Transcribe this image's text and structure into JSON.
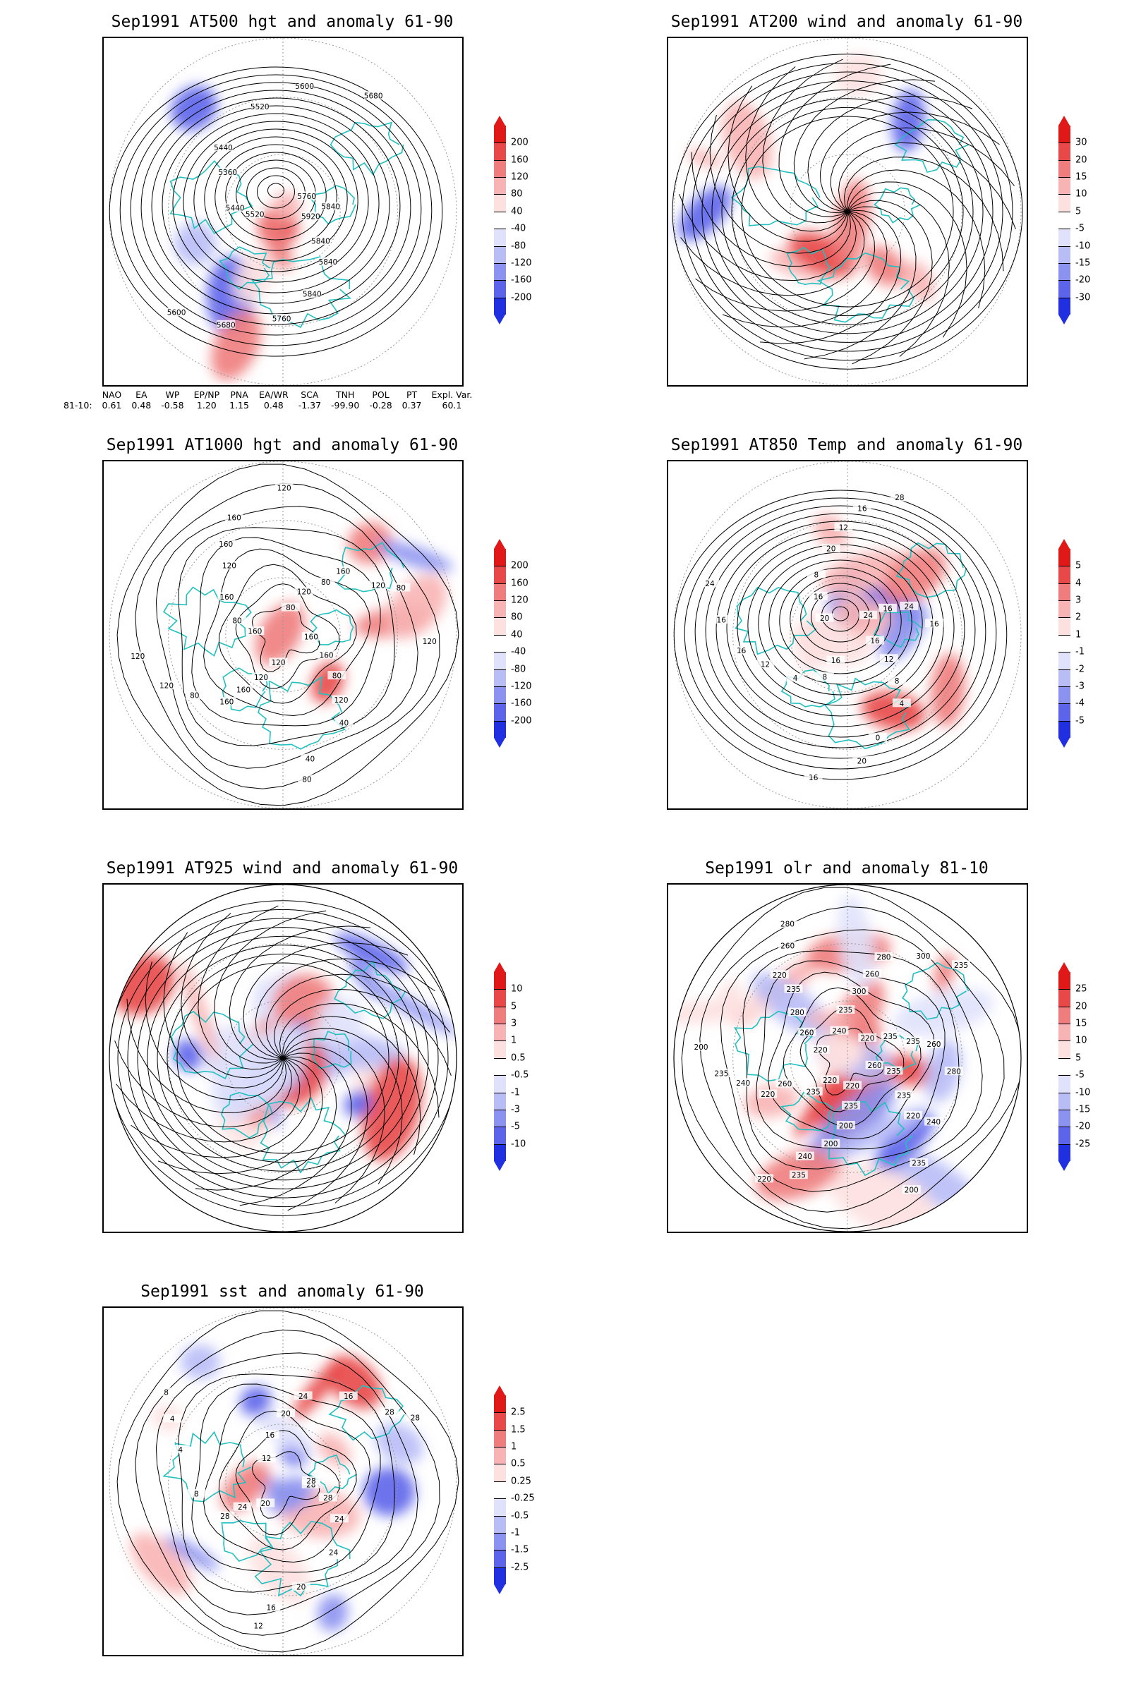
{
  "panels": [
    {
      "id": "p500",
      "title": "Sep1991 AT500 hgt and anomaly 61-90",
      "contour_labels": [
        "5920",
        "5840",
        "5840",
        "5840",
        "5760",
        "5680",
        "5600",
        "5520",
        "5440",
        "5360",
        "5440",
        "5520",
        "5600",
        "5680",
        "5760",
        "5840"
      ],
      "colorbar": {
        "levels": [
          "200",
          "160",
          "120",
          "80",
          "40",
          "-40",
          "-80",
          "-120",
          "-160",
          "-200"
        ]
      }
    },
    {
      "id": "p200",
      "title": "Sep1991 AT200 wind and anomaly 61-90",
      "contour_labels": [],
      "colorbar": {
        "levels": [
          "30",
          "20",
          "15",
          "10",
          "5",
          "-5",
          "-10",
          "-15",
          "-20",
          "-30"
        ]
      }
    },
    {
      "id": "p1000",
      "title": "Sep1991 AT1000 hgt and anomaly 61-90",
      "contour_labels": [
        "160",
        "160",
        "80",
        "120",
        "40",
        "40",
        "80",
        "120",
        "120",
        "160",
        "160",
        "80",
        "120",
        "120",
        "160",
        "80",
        "160",
        "120",
        "160",
        "160",
        "120",
        "80",
        "120",
        "80",
        "160",
        "120",
        "80",
        "120"
      ],
      "colorbar": {
        "levels": [
          "200",
          "160",
          "120",
          "80",
          "40",
          "-40",
          "-80",
          "-120",
          "-160",
          "-200"
        ]
      }
    },
    {
      "id": "p850",
      "title": "Sep1991 AT850 Temp and anomaly 61-90",
      "contour_labels": [
        "16",
        "12",
        "8",
        "4",
        "0",
        "20",
        "16",
        "16",
        "8",
        "4",
        "12",
        "16",
        "16",
        "24",
        "20",
        "16",
        "8",
        "20",
        "12",
        "16",
        "28",
        "24",
        "16",
        "24",
        "16"
      ],
      "colorbar": {
        "levels": [
          "5",
          "4",
          "3",
          "2",
          "1",
          "-1",
          "-2",
          "-3",
          "-4",
          "-5"
        ]
      }
    },
    {
      "id": "p925",
      "title": "Sep1991 AT925 wind and anomaly 61-90",
      "contour_labels": [],
      "colorbar": {
        "levels": [
          "10",
          "5",
          "3",
          "1",
          "0.5",
          "-0.5",
          "-1",
          "-3",
          "-5",
          "-10"
        ]
      }
    },
    {
      "id": "polr",
      "title": "Sep1991 olr and anomaly 81-10",
      "contour_labels": [
        "260",
        "235",
        "235",
        "220",
        "240",
        "235",
        "200",
        "220",
        "235",
        "200",
        "200",
        "240",
        "235",
        "220",
        "220",
        "235",
        "260",
        "220",
        "240",
        "235",
        "200",
        "220",
        "260",
        "280",
        "235",
        "220",
        "260",
        "280",
        "240",
        "235",
        "300",
        "260",
        "280",
        "300",
        "235",
        "220",
        "235",
        "235",
        "260",
        "280"
      ],
      "colorbar": {
        "levels": [
          "25",
          "20",
          "15",
          "10",
          "5",
          "-5",
          "-10",
          "-15",
          "-20",
          "-25"
        ]
      }
    },
    {
      "id": "psst",
      "title": "Sep1991 sst and anomaly 61-90",
      "contour_labels": [
        "28",
        "28",
        "24",
        "24",
        "20",
        "16",
        "12",
        "20",
        "24",
        "28",
        "8",
        "4",
        "4",
        "8",
        "12",
        "16",
        "20",
        "24",
        "16",
        "28",
        "28",
        "28"
      ],
      "colorbar": {
        "levels": [
          "2.5",
          "1.5",
          "1",
          "0.5",
          "0.25",
          "-0.25",
          "-0.5",
          "-1",
          "-1.5",
          "-2.5"
        ]
      }
    }
  ],
  "indices": {
    "headers": [
      "NAO",
      "EA",
      "WP",
      "EP/NP",
      "PNA",
      "EA/WR",
      "SCA",
      "TNH",
      "POL",
      "PT",
      "Expl. Var."
    ],
    "row_label": "81-10:",
    "values": [
      "0.61",
      "0.48",
      "-0.58",
      "1.20",
      "1.15",
      "0.48",
      "-1.37",
      "-99.90",
      "-0.28",
      "0.37",
      "60.1"
    ]
  },
  "colors": {
    "coast": "#22c0c0",
    "pos_ramp": [
      "#fde0e0",
      "#f8b4b4",
      "#f07d7d",
      "#e84848",
      "#e01818"
    ],
    "neg_ramp": [
      "#e0e2fc",
      "#b8bdf6",
      "#8c92f0",
      "#5c64ea",
      "#2030e0"
    ]
  }
}
